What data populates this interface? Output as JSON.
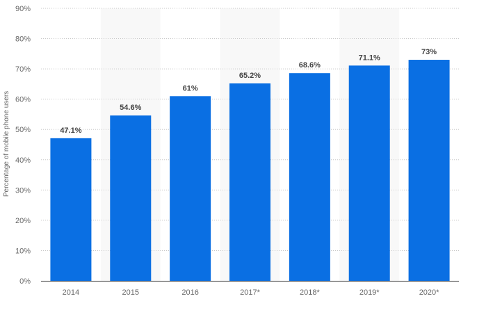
{
  "chart_data": {
    "type": "bar",
    "categories": [
      "2014",
      "2015",
      "2016",
      "2017*",
      "2018*",
      "2019*",
      "2020*"
    ],
    "values": [
      47.1,
      54.6,
      61,
      65.2,
      68.6,
      71.1,
      73
    ],
    "data_labels": [
      "47.1%",
      "54.6%",
      "61%",
      "65.2%",
      "68.6%",
      "71.1%",
      "73%"
    ],
    "ylabel": "Percentage of mobile phone users",
    "ylim": [
      0,
      90
    ],
    "yticks": [
      0,
      10,
      20,
      30,
      40,
      50,
      60,
      70,
      80,
      90
    ],
    "ytick_labels": [
      "0%",
      "10%",
      "20%",
      "30%",
      "40%",
      "50%",
      "60%",
      "70%",
      "80%",
      "90%"
    ],
    "grid": true,
    "shaded_categories": [
      "2015",
      "2017*",
      "2019*"
    ],
    "colors": {
      "bar": "#0a6fe3",
      "shade": "#f8f8f8",
      "grid": "#c8c8c8",
      "axis": "#333333"
    }
  }
}
